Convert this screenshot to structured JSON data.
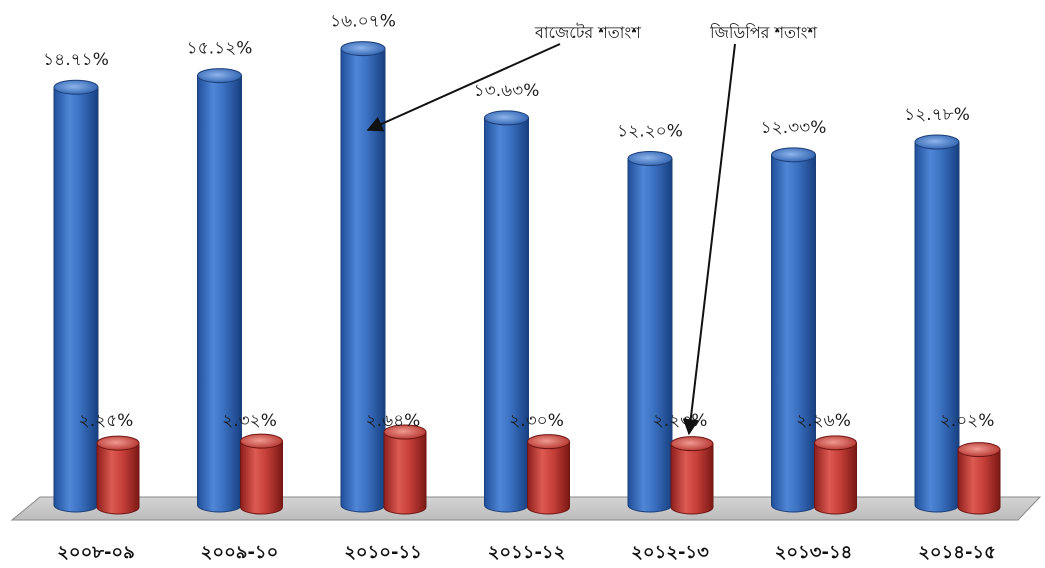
{
  "chart_data": {
    "type": "bar",
    "categories": [
      "২০০৮-০৯",
      "২০০৯-১০",
      "২০১০-১১",
      "২০১১-১২",
      "২০১২-১৩",
      "২০১৩-১৪",
      "২০১৪-১৫"
    ],
    "series": [
      {
        "name": "বাজেটের শতাংশ",
        "values": [
          14.71,
          15.12,
          16.07,
          13.63,
          12.2,
          12.33,
          12.78
        ],
        "labels": [
          "১৪.৭১%",
          "১৫.১২%",
          "১৬.০৭%",
          "১৩.৬৩%",
          "১২.২০%",
          "১২.৩৩%",
          "১২.৭৮%"
        ],
        "color": "#3a70c0"
      },
      {
        "name": "জিডিপির শতাংশ",
        "values": [
          2.25,
          2.32,
          2.64,
          2.3,
          2.23,
          2.26,
          2.02
        ],
        "labels": [
          "২.২৫%",
          "২.৩২%",
          "২.৬৪%",
          "২.৩০%",
          "২.২৩%",
          "২.২৬%",
          "২.০২%"
        ],
        "color": "#c8403a"
      }
    ],
    "annotations": [
      {
        "text": "বাজেটের শতাংশ",
        "points_to": "২০১০-১১ বাজেটের শতাংশ"
      },
      {
        "text": "জিডিপির শতাংশ",
        "points_to": "২০১২-১৩ জিডিপির শতাংশ"
      }
    ],
    "title": "",
    "xlabel": "",
    "ylabel": "",
    "ylim": [
      0,
      17
    ],
    "grid": false,
    "legend": "none"
  }
}
